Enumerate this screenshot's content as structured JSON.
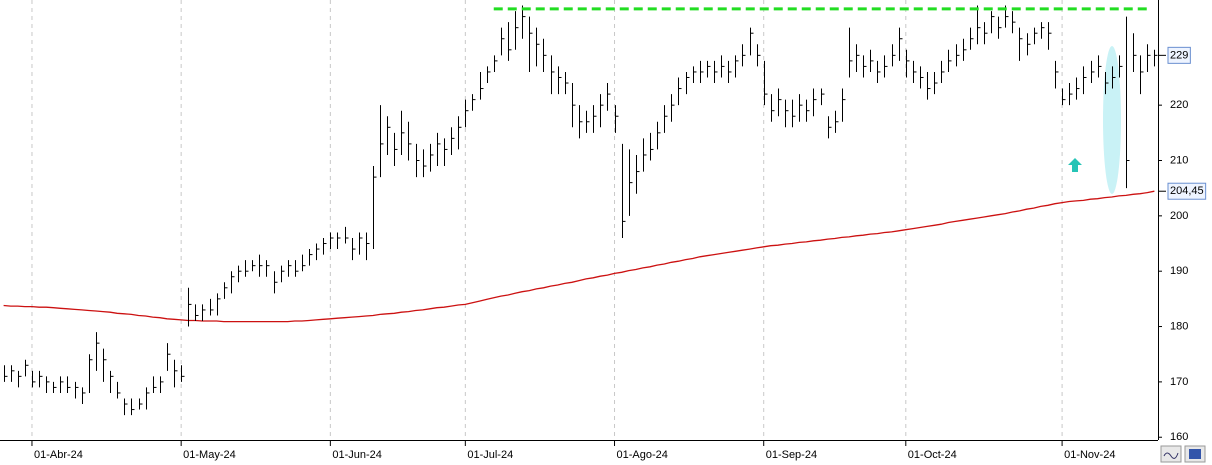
{
  "chart_data": {
    "type": "ohlc",
    "categories": [
      null,
      null,
      null,
      null,
      "01-Abr-24",
      null,
      null,
      null,
      null,
      null,
      null,
      null,
      null,
      null,
      null,
      null,
      null,
      null,
      null,
      null,
      null,
      null,
      null,
      null,
      null,
      "01-May-24",
      null,
      null,
      null,
      null,
      null,
      null,
      null,
      null,
      null,
      null,
      null,
      null,
      null,
      null,
      null,
      null,
      null,
      null,
      null,
      null,
      "01-Jun-24",
      null,
      null,
      null,
      null,
      null,
      null,
      null,
      null,
      null,
      null,
      null,
      null,
      null,
      null,
      null,
      null,
      null,
      null,
      "01-Jul-24",
      null,
      null,
      null,
      null,
      null,
      null,
      null,
      null,
      null,
      null,
      null,
      null,
      null,
      null,
      null,
      null,
      null,
      null,
      null,
      null,
      "01-Ago-24",
      null,
      null,
      null,
      null,
      null,
      null,
      null,
      null,
      null,
      null,
      null,
      null,
      null,
      null,
      null,
      null,
      null,
      null,
      null,
      null,
      "01-Sep-24",
      null,
      null,
      null,
      null,
      null,
      null,
      null,
      null,
      null,
      null,
      null,
      null,
      null,
      null,
      null,
      null,
      null,
      null,
      null,
      "01-Oct-24",
      null,
      null,
      null,
      null,
      null,
      null,
      null,
      null,
      null,
      null,
      null,
      null,
      null,
      null,
      null,
      null,
      null,
      null,
      null,
      null,
      null,
      "01-Nov-24",
      null,
      null,
      null,
      null,
      null,
      null,
      null,
      null,
      null,
      null,
      null,
      null,
      null
    ],
    "high": [
      173,
      173,
      172,
      174,
      172,
      172,
      171,
      170,
      171,
      171,
      170,
      169,
      175,
      179,
      176,
      172,
      170,
      167,
      167,
      167,
      169,
      171,
      171,
      177,
      174,
      173,
      187,
      184,
      184,
      185,
      186,
      188,
      190,
      191,
      192,
      192,
      193,
      192,
      190,
      191,
      192,
      192,
      193,
      194,
      195,
      196,
      197,
      197,
      198,
      196,
      197,
      197,
      209,
      220,
      218,
      215,
      219,
      217,
      213,
      212,
      213,
      215,
      214,
      216,
      218,
      221,
      222,
      226,
      227,
      229,
      234,
      235,
      237,
      238,
      236,
      234,
      232,
      229,
      227,
      226,
      224,
      220,
      219,
      220,
      222,
      224,
      220,
      213,
      212,
      211,
      214,
      215,
      217,
      220,
      222,
      225,
      226,
      227,
      228,
      228,
      228,
      229,
      228,
      229,
      231,
      234,
      231,
      228,
      222,
      223,
      221,
      221,
      222,
      221,
      223,
      223,
      218,
      219,
      223,
      234,
      231,
      229,
      230,
      228,
      229,
      231,
      234,
      230,
      228,
      227,
      226,
      226,
      228,
      230,
      231,
      232,
      234,
      238,
      235,
      237,
      236,
      238,
      237,
      234,
      233,
      234,
      235,
      235,
      228,
      223,
      224,
      225,
      227,
      228,
      229,
      226,
      227,
      229,
      236,
      233,
      229,
      231,
      230
    ],
    "low": [
      170,
      170,
      169,
      171,
      169,
      169,
      168,
      168,
      168,
      168,
      167,
      166,
      168,
      172,
      170,
      168,
      167,
      164,
      164,
      165,
      165,
      168,
      168,
      172,
      169,
      170,
      180,
      181,
      181,
      182,
      182,
      185,
      186,
      188,
      189,
      190,
      189,
      189,
      186,
      188,
      189,
      189,
      190,
      191,
      192,
      193,
      194,
      194,
      195,
      192,
      193,
      192,
      194,
      207,
      211,
      209,
      211,
      210,
      207,
      207,
      208,
      209,
      209,
      211,
      212,
      216,
      219,
      221,
      224,
      226,
      229,
      228,
      230,
      232,
      226,
      227,
      226,
      222,
      222,
      222,
      216,
      214,
      215,
      215,
      216,
      219,
      215,
      196,
      200,
      204,
      208,
      210,
      212,
      215,
      217,
      220,
      222,
      224,
      224,
      225,
      224,
      225,
      224,
      225,
      227,
      229,
      227,
      220,
      217,
      218,
      216,
      216,
      217,
      217,
      218,
      220,
      214,
      215,
      217,
      225,
      226,
      225,
      226,
      224,
      225,
      227,
      228,
      225,
      224,
      223,
      221,
      222,
      224,
      226,
      227,
      228,
      230,
      231,
      231,
      233,
      232,
      234,
      233,
      228,
      229,
      231,
      232,
      230,
      223,
      220,
      220,
      221,
      222,
      224,
      225,
      222,
      223,
      225,
      205,
      226,
      222,
      226,
      227
    ],
    "close": [
      171,
      172,
      171,
      173,
      170,
      171,
      170,
      169,
      170,
      169,
      169,
      168,
      174,
      177,
      174,
      171,
      168,
      166,
      165,
      166,
      168,
      169,
      170,
      175,
      172,
      171,
      184,
      182,
      183,
      183,
      185,
      187,
      189,
      190,
      190,
      191,
      191,
      191,
      188,
      190,
      191,
      190,
      191,
      193,
      194,
      195,
      196,
      196,
      196,
      194,
      196,
      195,
      207,
      213,
      216,
      212,
      215,
      213,
      210,
      209,
      211,
      213,
      212,
      214,
      216,
      219,
      221,
      223,
      226,
      228,
      232,
      230,
      234,
      236,
      233,
      231,
      229,
      226,
      225,
      224,
      220,
      217,
      217,
      218,
      220,
      222,
      218,
      199,
      206,
      208,
      211,
      212,
      215,
      218,
      220,
      223,
      225,
      226,
      226,
      227,
      226,
      227,
      226,
      228,
      229,
      233,
      229,
      222,
      219,
      221,
      219,
      218,
      220,
      219,
      221,
      222,
      216,
      217,
      221,
      228,
      229,
      227,
      228,
      226,
      227,
      229,
      232,
      228,
      226,
      225,
      223,
      224,
      226,
      228,
      229,
      230,
      232,
      234,
      233,
      236,
      234,
      236,
      235,
      232,
      231,
      233,
      234,
      233,
      226,
      221,
      222,
      223,
      225,
      226,
      227,
      224,
      225,
      227,
      210,
      229,
      226,
      229,
      229
    ],
    "bar_color": "#000000",
    "ma": {
      "color": "#cc1111",
      "values": [
        183.8,
        183.7,
        183.7,
        183.6,
        183.6,
        183.5,
        183.5,
        183.4,
        183.3,
        183.2,
        183.1,
        183.0,
        182.9,
        182.8,
        182.7,
        182.6,
        182.4,
        182.3,
        182.2,
        182.0,
        181.9,
        181.7,
        181.6,
        181.4,
        181.3,
        181.2,
        181.1,
        181.1,
        181.0,
        181.0,
        181.0,
        180.9,
        180.9,
        180.9,
        180.9,
        180.9,
        180.9,
        180.9,
        180.9,
        180.9,
        180.9,
        181.0,
        181.0,
        181.1,
        181.2,
        181.3,
        181.4,
        181.5,
        181.6,
        181.7,
        181.8,
        181.9,
        182.0,
        182.2,
        182.3,
        182.4,
        182.6,
        182.7,
        182.9,
        183.0,
        183.2,
        183.4,
        183.5,
        183.7,
        183.9,
        184.0,
        184.3,
        184.6,
        184.9,
        185.2,
        185.5,
        185.7,
        186.0,
        186.3,
        186.5,
        186.8,
        187.0,
        187.3,
        187.5,
        187.8,
        188.0,
        188.3,
        188.6,
        188.8,
        189.1,
        189.3,
        189.6,
        189.8,
        190.1,
        190.3,
        190.6,
        190.8,
        191.1,
        191.3,
        191.6,
        191.8,
        192.1,
        192.3,
        192.6,
        192.8,
        193.0,
        193.2,
        193.4,
        193.6,
        193.8,
        194.0,
        194.2,
        194.4,
        194.6,
        194.7,
        194.9,
        195.0,
        195.2,
        195.3,
        195.5,
        195.6,
        195.8,
        195.9,
        196.1,
        196.2,
        196.4,
        196.5,
        196.7,
        196.8,
        197.0,
        197.1,
        197.3,
        197.5,
        197.7,
        197.9,
        198.1,
        198.3,
        198.5,
        198.8,
        199.0,
        199.2,
        199.4,
        199.6,
        199.8,
        200.0,
        200.2,
        200.4,
        200.7,
        200.9,
        201.2,
        201.4,
        201.7,
        201.9,
        202.2,
        202.4,
        202.6,
        202.7,
        202.8,
        203.0,
        203.1,
        203.3,
        203.4,
        203.6,
        203.7,
        203.9,
        204.0,
        204.2,
        204.45
      ]
    },
    "resistance": {
      "value": 237.4,
      "color": "#22dd22"
    },
    "price_labels": [
      {
        "value": 229,
        "label": "229"
      },
      {
        "value": 204.45,
        "label": "204,45"
      }
    ],
    "ylim": [
      159.5,
      239
    ],
    "yticks": [
      160,
      170,
      180,
      190,
      200,
      210,
      220
    ],
    "grid": "x"
  }
}
